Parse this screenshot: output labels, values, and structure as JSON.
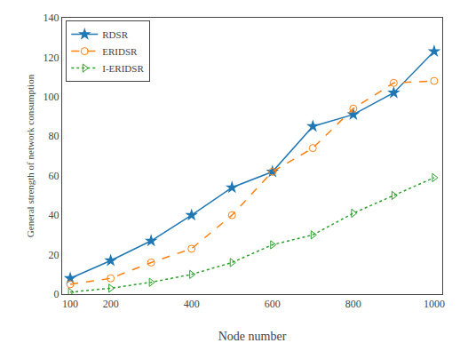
{
  "chart_data": {
    "type": "line",
    "x": [
      100,
      200,
      300,
      400,
      500,
      600,
      700,
      800,
      900,
      1000
    ],
    "series": [
      {
        "name": "RDSR",
        "values": [
          8,
          17,
          27,
          40,
          54,
          62,
          85,
          91,
          102,
          123
        ],
        "marker": "star",
        "line_style": "solid"
      },
      {
        "name": "ERIDSR",
        "values": [
          5,
          8,
          16,
          23,
          40,
          62,
          74,
          94,
          107,
          108
        ],
        "marker": "circle-open",
        "line_style": "dash"
      },
      {
        "name": "I-ERIDSR",
        "values": [
          1,
          3,
          6,
          10,
          16,
          25,
          30,
          41,
          50,
          59
        ],
        "marker": "triangle-right-open",
        "line_style": "dot"
      }
    ],
    "xlabel": "Node number",
    "ylabel": "General strength of network consumption",
    "xlim": [
      80,
      1020
    ],
    "ylim": [
      0,
      140
    ],
    "xticks": [
      100,
      200,
      400,
      600,
      800,
      1000
    ],
    "yticks": [
      0,
      20,
      40,
      60,
      80,
      100,
      120,
      140
    ],
    "legend": "upper left",
    "grid": false
  }
}
